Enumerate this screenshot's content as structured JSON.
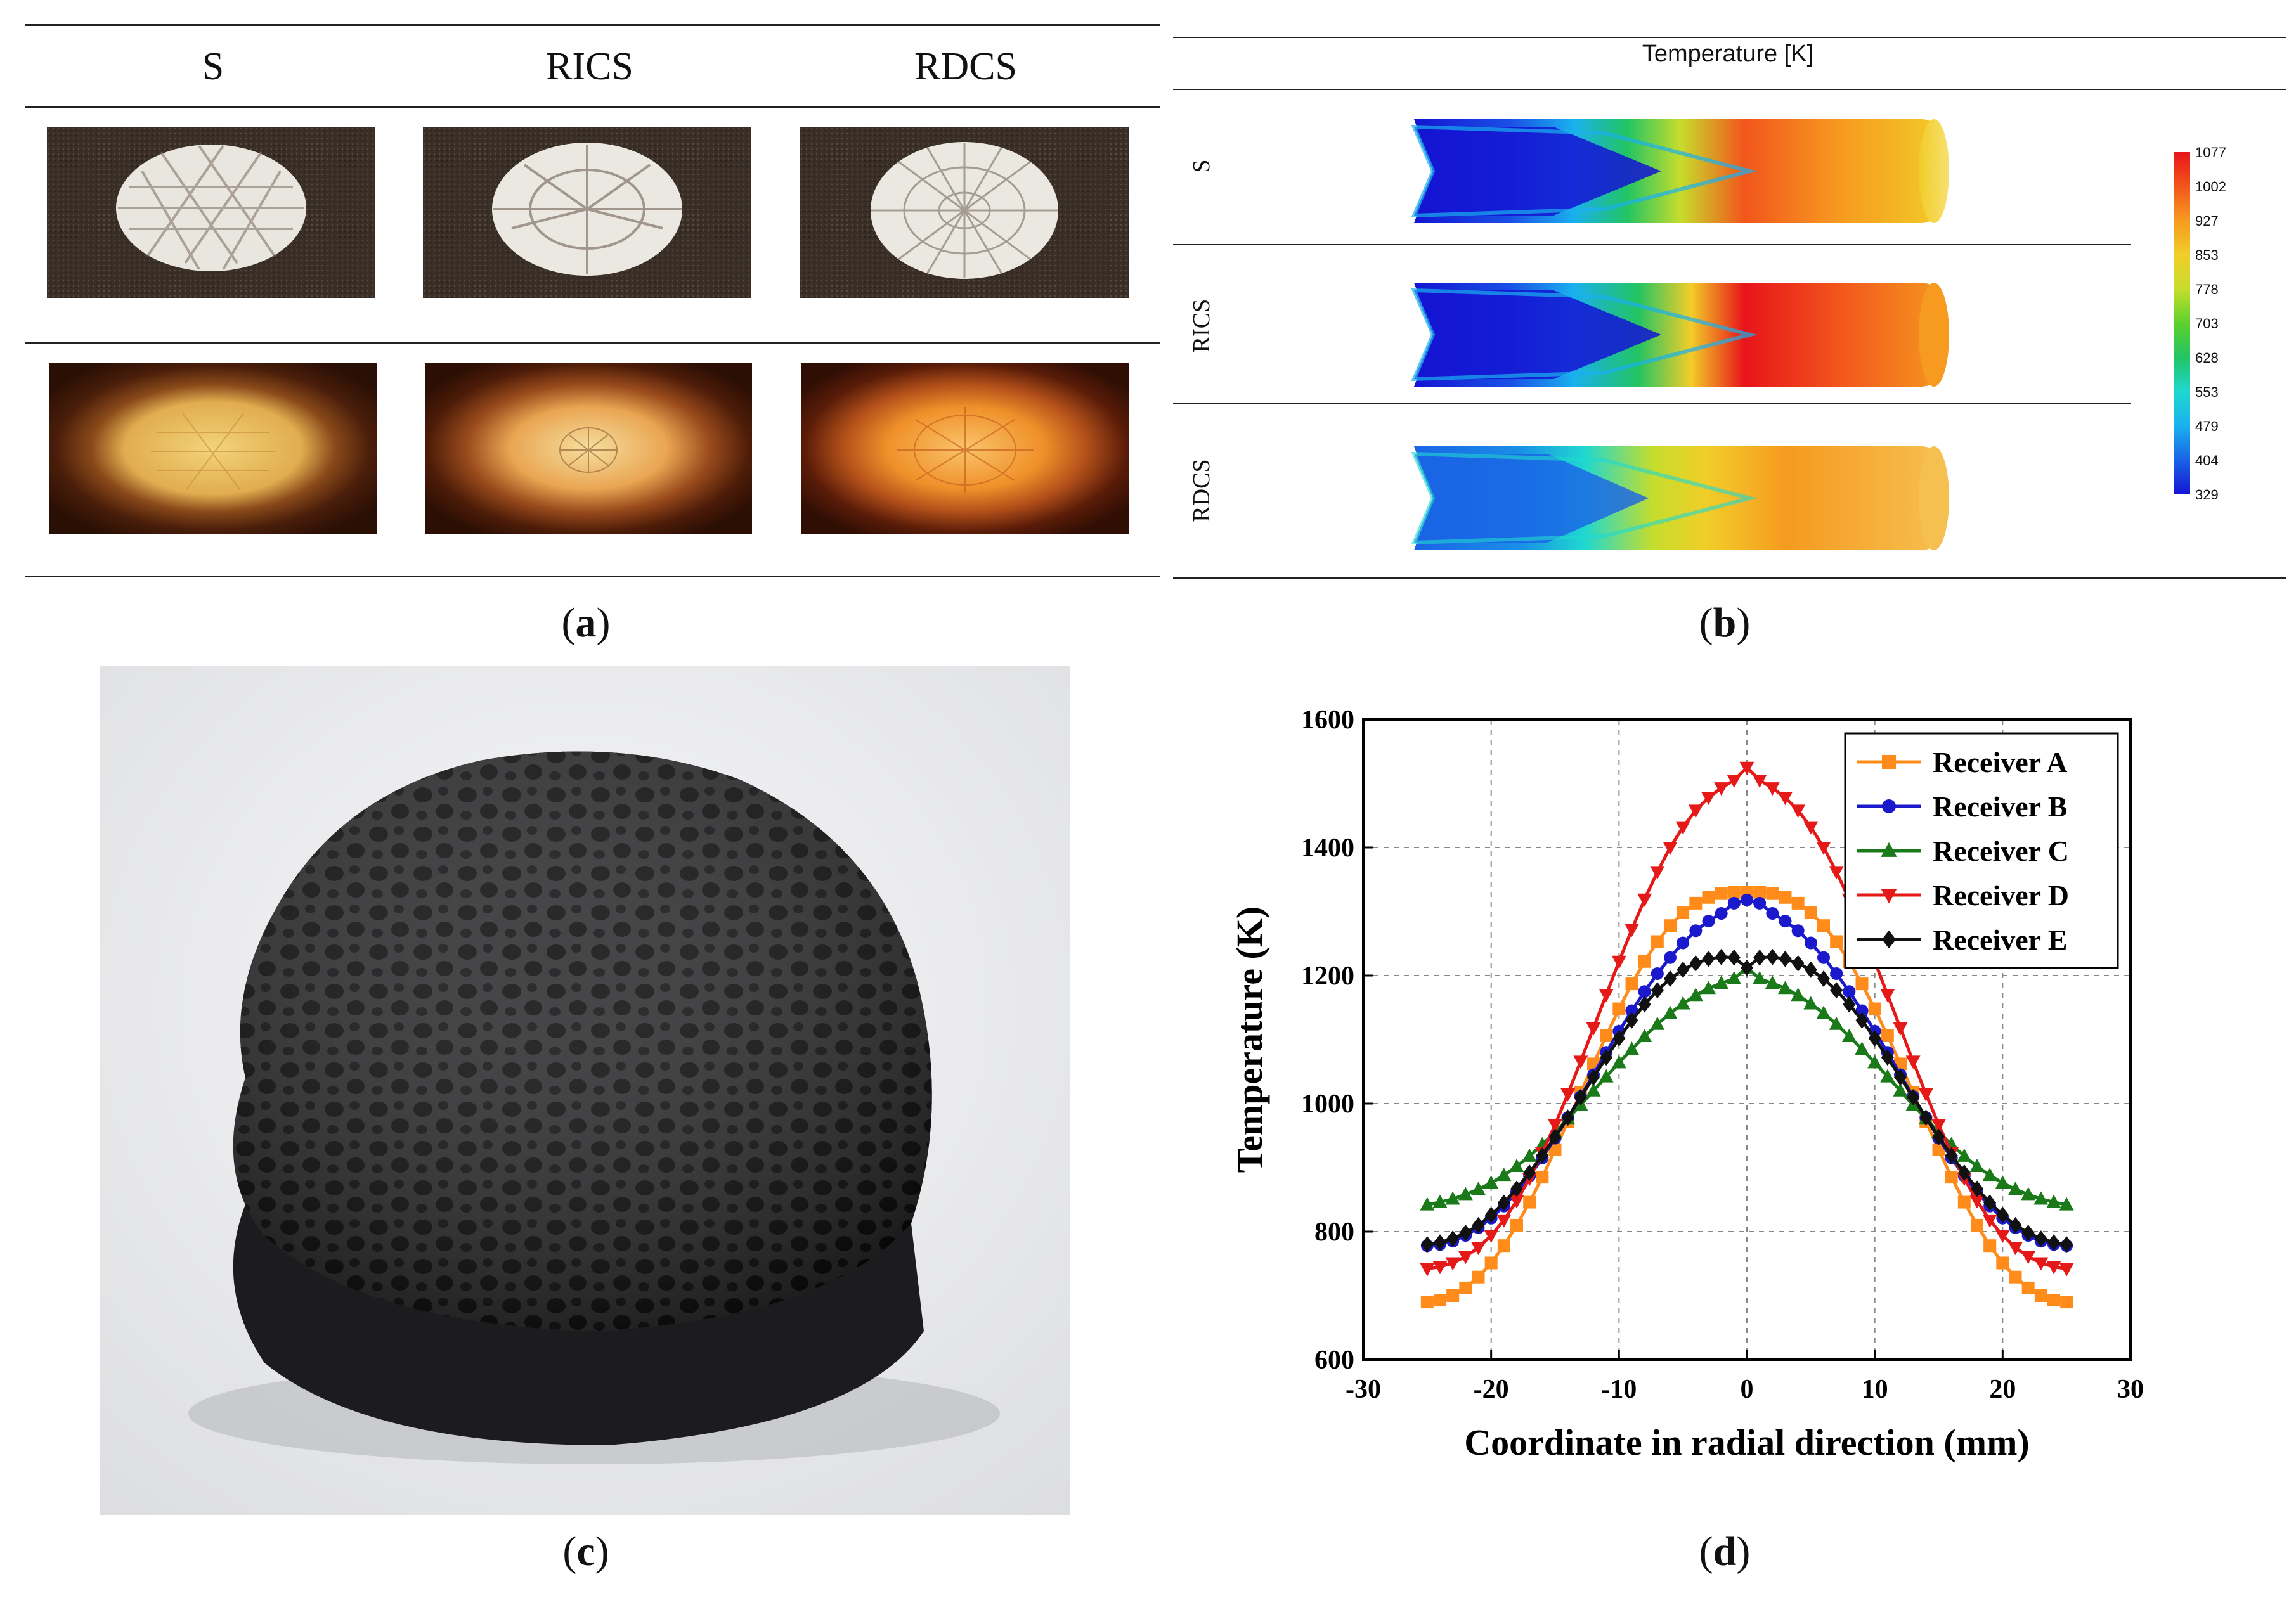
{
  "panel_a": {
    "columns": [
      "S",
      "RICS",
      "RDCS"
    ],
    "caption_letter": "a"
  },
  "panel_b": {
    "title": "Temperature [K]",
    "rows": [
      "S",
      "RICS",
      "RDCS"
    ],
    "colorbar_ticks": [
      "1077",
      "1002",
      "927",
      "853",
      "778",
      "703",
      "628",
      "553",
      "479",
      "404",
      "329"
    ],
    "colorbar_colors": [
      "#e8141a",
      "#f2561c",
      "#f69a20",
      "#f2cd28",
      "#c6dd2c",
      "#5cd12e",
      "#22c463",
      "#1fd8d0",
      "#1ab0ee",
      "#1a63e6",
      "#1414d2"
    ],
    "caption_letter": "b"
  },
  "panel_c": {
    "caption_letter": "c"
  },
  "panel_d": {
    "caption_letter": "d"
  },
  "chart_data": {
    "type": "line",
    "title": "",
    "xlabel": "Coordinate in radial direction (mm)",
    "ylabel": "Temperature (K)",
    "xlim": [
      -30,
      30
    ],
    "ylim": [
      600,
      1600
    ],
    "xticks": [
      -30,
      -20,
      -10,
      0,
      10,
      20,
      30
    ],
    "yticks": [
      600,
      800,
      1000,
      1200,
      1400,
      1600
    ],
    "grid": true,
    "legend_position": "top-right",
    "x": [
      -25,
      -24,
      -23,
      -22,
      -21,
      -20,
      -19,
      -18,
      -17,
      -16,
      -15,
      -14,
      -13,
      -12,
      -11,
      -10,
      -9,
      -8,
      -7,
      -6,
      -5,
      -4,
      -3,
      -2,
      -1,
      0,
      1,
      2,
      3,
      4,
      5,
      6,
      7,
      8,
      9,
      10,
      11,
      12,
      13,
      14,
      15,
      16,
      17,
      18,
      19,
      20,
      21,
      22,
      23,
      24,
      25
    ],
    "series": [
      {
        "name": "Receiver A",
        "color": "#ff8c1a",
        "marker": "square",
        "values": [
          690,
          693,
          700,
          712,
          729,
          751,
          778,
          810,
          846,
          885,
          928,
          972,
          1017,
          1062,
          1106,
          1148,
          1187,
          1222,
          1253,
          1278,
          1298,
          1313,
          1322,
          1328,
          1330,
          1330,
          1330,
          1328,
          1322,
          1313,
          1298,
          1278,
          1253,
          1222,
          1187,
          1148,
          1106,
          1062,
          1017,
          972,
          928,
          885,
          846,
          810,
          778,
          751,
          729,
          712,
          700,
          693,
          690
        ]
      },
      {
        "name": "Receiver B",
        "color": "#1a1acc",
        "marker": "circle",
        "values": [
          778,
          780,
          785,
          794,
          806,
          821,
          840,
          862,
          887,
          915,
          946,
          978,
          1011,
          1045,
          1080,
          1113,
          1145,
          1175,
          1203,
          1228,
          1251,
          1270,
          1285,
          1297,
          1313,
          1318,
          1313,
          1297,
          1285,
          1270,
          1251,
          1228,
          1203,
          1175,
          1145,
          1113,
          1080,
          1045,
          1011,
          978,
          946,
          915,
          887,
          862,
          840,
          821,
          806,
          794,
          785,
          780,
          778
        ]
      },
      {
        "name": "Receiver C",
        "color": "#1a7a1a",
        "marker": "triangle-up",
        "values": [
          842,
          846,
          851,
          858,
          866,
          876,
          888,
          902,
          918,
          936,
          955,
          976,
          998,
          1020,
          1042,
          1064,
          1085,
          1105,
          1124,
          1141,
          1156,
          1169,
          1180,
          1188,
          1195,
          1212,
          1195,
          1188,
          1180,
          1169,
          1156,
          1141,
          1124,
          1105,
          1085,
          1064,
          1042,
          1020,
          998,
          976,
          955,
          936,
          918,
          902,
          888,
          876,
          866,
          858,
          851,
          846,
          842
        ]
      },
      {
        "name": "Receiver D",
        "color": "#e61919",
        "marker": "triangle-down",
        "values": [
          742,
          745,
          751,
          761,
          775,
          794,
          818,
          848,
          883,
          923,
          967,
          1015,
          1066,
          1118,
          1170,
          1222,
          1272,
          1319,
          1362,
          1400,
          1432,
          1458,
          1478,
          1493,
          1505,
          1525,
          1505,
          1493,
          1478,
          1458,
          1432,
          1400,
          1362,
          1319,
          1272,
          1222,
          1170,
          1118,
          1066,
          1015,
          967,
          923,
          883,
          848,
          818,
          794,
          775,
          761,
          751,
          745,
          742
        ]
      },
      {
        "name": "Receiver E",
        "color": "#111111",
        "marker": "diamond",
        "values": [
          780,
          783,
          789,
          798,
          810,
          826,
          845,
          867,
          892,
          919,
          948,
          978,
          1010,
          1041,
          1072,
          1102,
          1130,
          1155,
          1177,
          1195,
          1209,
          1219,
          1226,
          1229,
          1228,
          1212,
          1228,
          1229,
          1226,
          1219,
          1209,
          1195,
          1177,
          1155,
          1130,
          1102,
          1072,
          1041,
          1010,
          978,
          948,
          919,
          892,
          867,
          845,
          826,
          810,
          798,
          789,
          783,
          780
        ]
      }
    ]
  }
}
